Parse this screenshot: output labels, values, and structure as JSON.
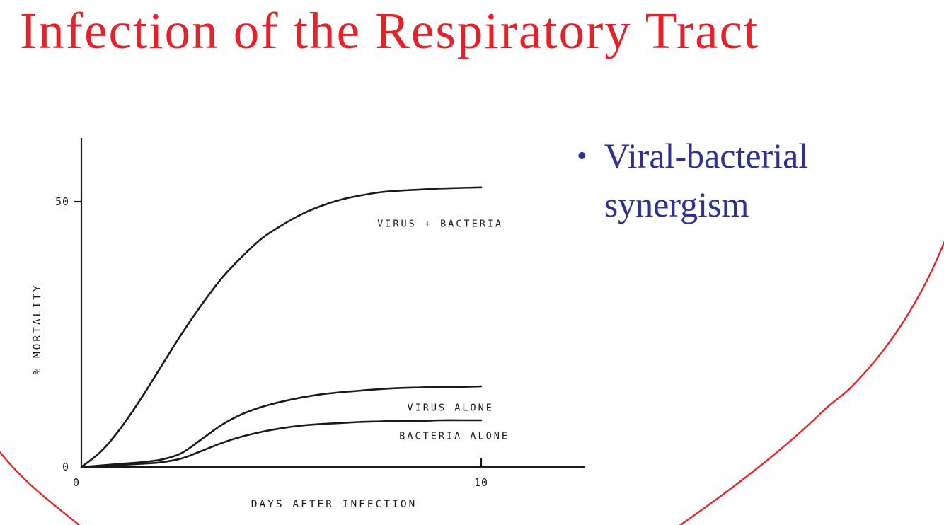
{
  "title": {
    "text": "Infection of the Respiratory Tract"
  },
  "bullet": {
    "marker": "•",
    "text": "Viral-bacterial synergism"
  },
  "colors": {
    "title_red": "#e62129",
    "bullet_blue": "#2e3192",
    "decoration_red": "#e8242b",
    "chart_ink": "#1a1a1a"
  },
  "chart_data": {
    "type": "line",
    "title": "",
    "xlabel": "DAYS  AFTER  INFECTION",
    "ylabel": "% MORTALITY",
    "xlim": [
      0,
      12.6
    ],
    "ylim": [
      0,
      62
    ],
    "grid": false,
    "legend": "inline-labels",
    "x_ticks": [
      {
        "value": 0,
        "label": "0"
      },
      {
        "value": 10,
        "label": "10"
      }
    ],
    "y_ticks": [
      {
        "value": 0,
        "label": "0"
      },
      {
        "value": 50,
        "label": "50"
      }
    ],
    "series": [
      {
        "name": "VIRUS + BACTERIA",
        "label_pos": [
          7.4,
          45.3
        ],
        "points": [
          [
            0,
            0
          ],
          [
            0.5,
            3
          ],
          [
            1,
            7.5
          ],
          [
            1.5,
            13
          ],
          [
            2,
            19
          ],
          [
            2.5,
            25
          ],
          [
            3,
            30.5
          ],
          [
            3.5,
            35.5
          ],
          [
            4,
            39.5
          ],
          [
            4.5,
            43
          ],
          [
            5,
            45.5
          ],
          [
            5.5,
            47.6
          ],
          [
            6,
            49.2
          ],
          [
            6.5,
            50.4
          ],
          [
            7,
            51.2
          ],
          [
            7.5,
            51.8
          ],
          [
            8,
            52.1
          ],
          [
            8.5,
            52.3
          ],
          [
            9,
            52.5
          ],
          [
            9.5,
            52.6
          ],
          [
            10,
            52.7
          ]
        ]
      },
      {
        "name": "VIRUS ALONE",
        "label_pos": [
          8.15,
          10.6
        ],
        "points": [
          [
            0,
            0
          ],
          [
            0.5,
            0.3
          ],
          [
            1,
            0.6
          ],
          [
            1.5,
            0.9
          ],
          [
            2,
            1.4
          ],
          [
            2.5,
            2.6
          ],
          [
            3,
            5.2
          ],
          [
            3.5,
            7.9
          ],
          [
            4,
            9.9
          ],
          [
            4.5,
            11.3
          ],
          [
            5,
            12.3
          ],
          [
            5.5,
            13.1
          ],
          [
            6,
            13.7
          ],
          [
            6.5,
            14.1
          ],
          [
            7,
            14.4
          ],
          [
            7.5,
            14.7
          ],
          [
            8,
            14.9
          ],
          [
            8.5,
            15
          ],
          [
            9,
            15.1
          ],
          [
            9.5,
            15.1
          ],
          [
            10,
            15.2
          ]
        ]
      },
      {
        "name": "BACTERIA ALONE",
        "label_pos": [
          7.95,
          5.3
        ],
        "points": [
          [
            0,
            0
          ],
          [
            0.5,
            0.2
          ],
          [
            1,
            0.4
          ],
          [
            1.5,
            0.6
          ],
          [
            2,
            0.9
          ],
          [
            2.5,
            1.6
          ],
          [
            3,
            3
          ],
          [
            3.5,
            4.5
          ],
          [
            4,
            5.7
          ],
          [
            4.5,
            6.6
          ],
          [
            5,
            7.3
          ],
          [
            5.5,
            7.8
          ],
          [
            6,
            8.1
          ],
          [
            6.5,
            8.3
          ],
          [
            7,
            8.5
          ],
          [
            7.5,
            8.6
          ],
          [
            8,
            8.7
          ],
          [
            8.5,
            8.7
          ],
          [
            9,
            8.8
          ],
          [
            9.5,
            8.8
          ],
          [
            10,
            8.8
          ]
        ]
      }
    ]
  }
}
